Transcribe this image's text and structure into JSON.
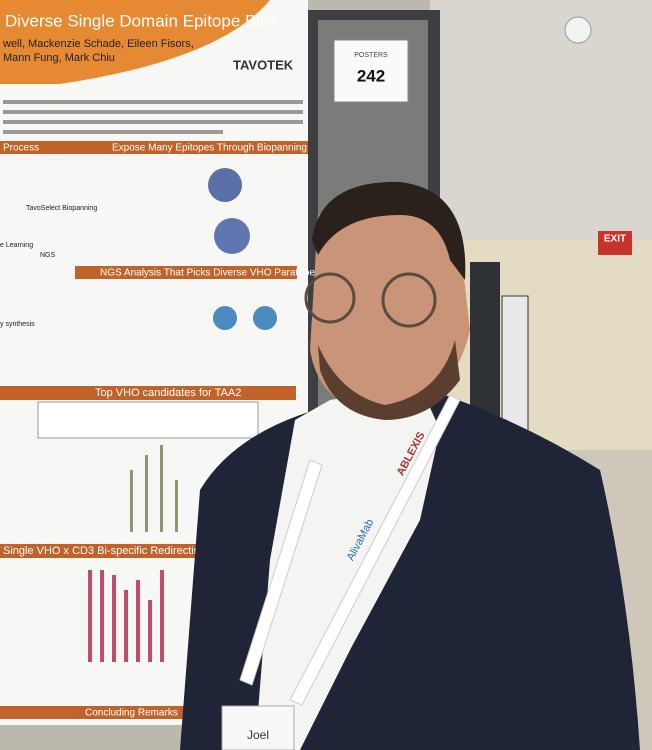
{
  "poster": {
    "title": "Diverse Single Domain Epitope Bins",
    "authors": [
      "well, Mackenzie Schade, Eileen Fisors,",
      "Mann Fung, Mark Chiu"
    ],
    "logo": "TAVOTEK",
    "sections": [
      "Process",
      "Expose Many Epitopes Through Biopanning",
      "NGS Analysis That Picks Diverse VHO Paratopes",
      "Top VHO candidates for TAA2",
      "Single VHO x CD3 Bi-specific Redirecting",
      "Concluding Remarks"
    ],
    "labels": [
      "TavoSelect Biopanning",
      "NGS",
      "e Learning",
      "y synthesis"
    ]
  },
  "board_sign": {
    "header": "POSTERS",
    "number": "242"
  },
  "exit_sign": "EXIT",
  "lanyard": [
    "AlivaMab",
    "ABLEXIS"
  ],
  "badge": "Joel"
}
